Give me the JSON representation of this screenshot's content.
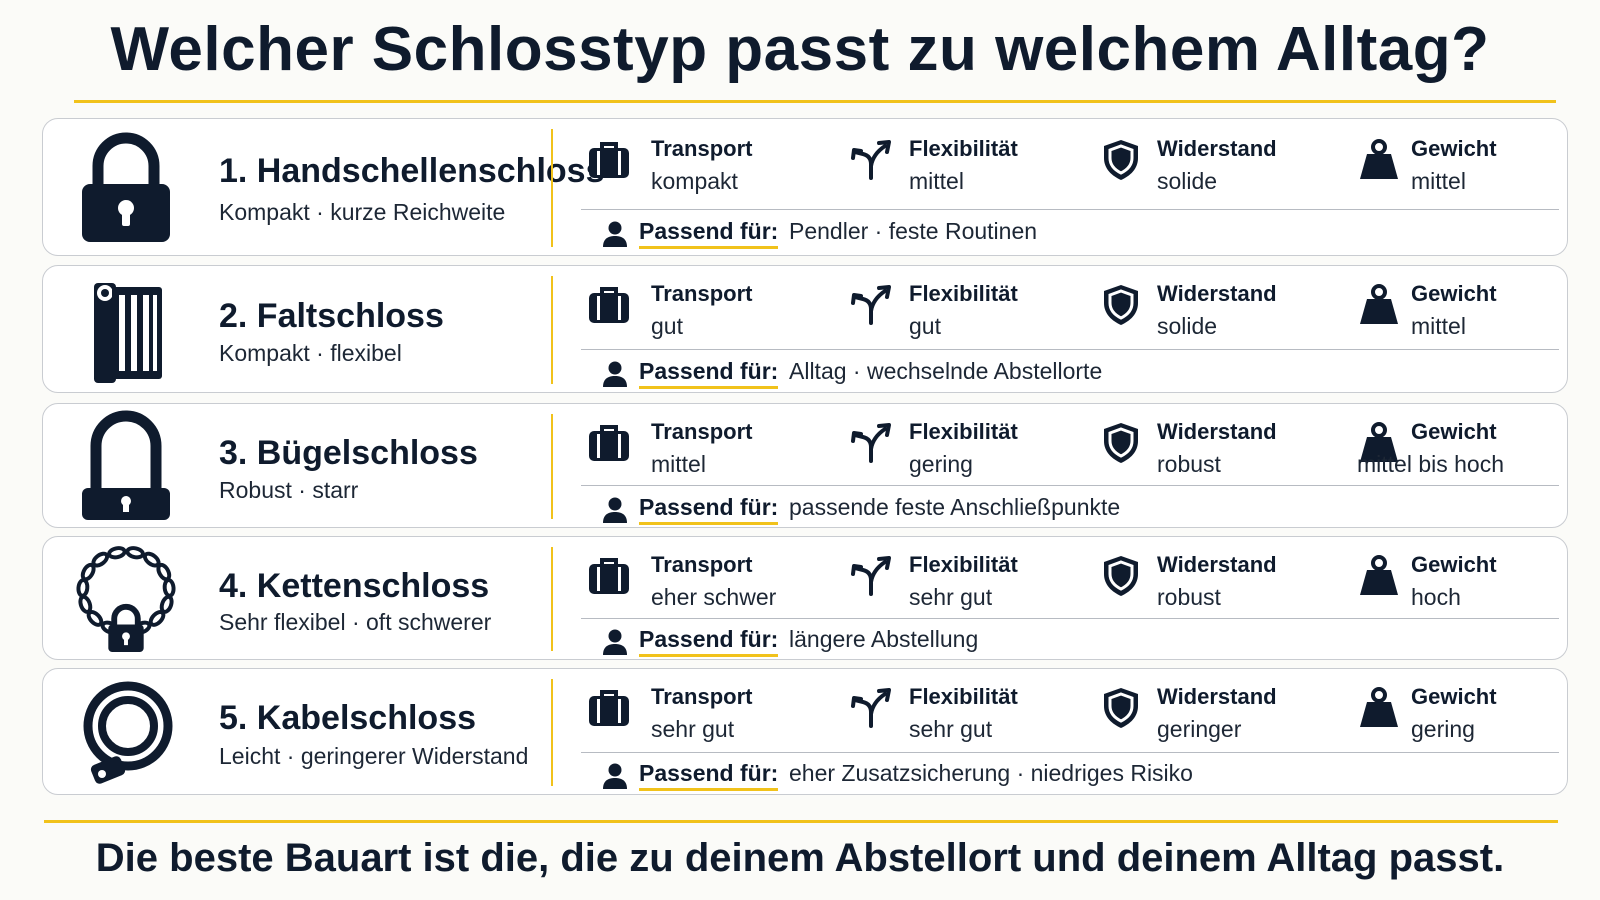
{
  "title": "Welcher Schlosstyp passt zu welchem Alltag?",
  "footer": "Die beste Bauart ist die, die zu deinem Abstellort und deinem Alltag passt.",
  "colors": {
    "accent": "#f1c21b",
    "text": "#0f1b2d",
    "border": "#c9ccd1"
  },
  "attribute_labels": {
    "transport": "Transport",
    "flexibility": "Flexibilität",
    "resistance": "Widerstand",
    "weight": "Gewicht",
    "fit": "Passend für:"
  },
  "attribute_icons": {
    "transport": "briefcase-icon",
    "flexibility": "branching-arrow-icon",
    "resistance": "shield-icon",
    "weight": "weight-icon",
    "fit": "person-icon"
  },
  "locks": [
    {
      "icon": "padlock-icon",
      "title": "1. Handschellenschloss",
      "subtitle": "Kompakt · kurze Reichweite",
      "transport": "kompakt",
      "flexibility": "mittel",
      "resistance": "solide",
      "weight": "mittel",
      "fit": "Pendler · feste Routinen"
    },
    {
      "icon": "folding-lock-icon",
      "title": "2. Faltschloss",
      "subtitle": "Kompakt · flexibel",
      "transport": "gut",
      "flexibility": "gut",
      "resistance": "solide",
      "weight": "mittel",
      "fit": "Alltag · wechselnde Abstellorte"
    },
    {
      "icon": "u-lock-icon",
      "title": "3. Bügelschloss",
      "subtitle": "Robust · starr",
      "transport": "mittel",
      "flexibility": "gering",
      "resistance": "robust",
      "weight": "mittel bis hoch",
      "fit": "passende feste Anschließpunkte"
    },
    {
      "icon": "chain-lock-icon",
      "title": "4. Kettenschloss",
      "subtitle": "Sehr flexibel · oft schwerer",
      "transport": "eher schwer",
      "flexibility": "sehr gut",
      "resistance": "robust",
      "weight": "hoch",
      "fit": "längere Abstellung"
    },
    {
      "icon": "cable-lock-icon",
      "title": "5. Kabelschloss",
      "subtitle": "Leicht · geringerer Widerstand",
      "transport": "sehr gut",
      "flexibility": "sehr gut",
      "resistance": "geringer",
      "weight": "gering",
      "fit": "eher Zusatzsicherung · niedriges Risiko"
    }
  ]
}
